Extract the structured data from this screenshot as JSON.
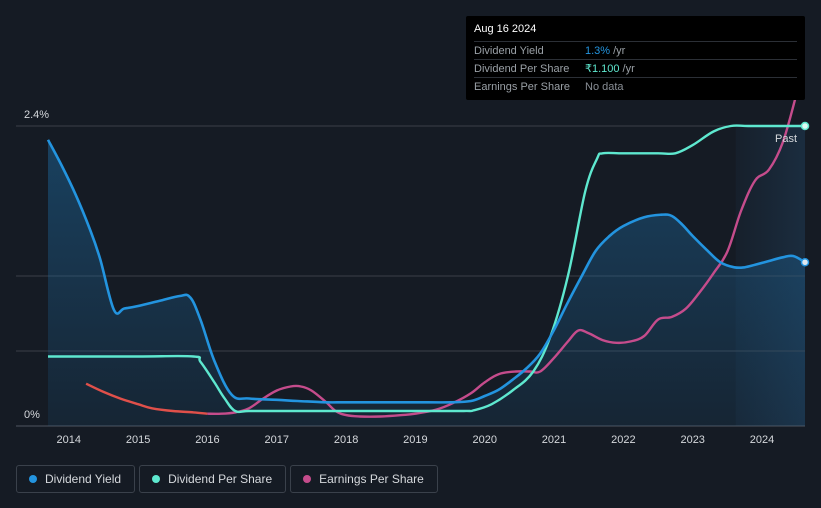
{
  "colors": {
    "background": "#151b24",
    "dividend_yield": "#2394df",
    "dividend_per_share": "#5ee8cf",
    "earnings_per_share": "#c54c8c",
    "eps_early": "#e0504a",
    "grid": "#3a3f47"
  },
  "tooltip": {
    "date": "Aug 16 2024",
    "rows": [
      {
        "label": "Dividend Yield",
        "value": "1.3%",
        "unit": "/yr",
        "color": "#2394df"
      },
      {
        "label": "Dividend Per Share",
        "value": "₹1.100",
        "unit": "/yr",
        "color": "#5ee8cf"
      },
      {
        "label": "Earnings Per Share",
        "value": "No data",
        "unit": "",
        "color": "#8a8f96"
      }
    ]
  },
  "legend": [
    {
      "label": "Dividend Yield",
      "color": "#2394df"
    },
    {
      "label": "Dividend Per Share",
      "color": "#5ee8cf"
    },
    {
      "label": "Earnings Per Share",
      "color": "#c54c8c"
    }
  ],
  "chart_data": {
    "type": "line",
    "y_tick_labels": [
      "2.4%",
      "0%"
    ],
    "ylim": [
      0,
      2.4
    ],
    "xlim": [
      2013.7,
      2024.62
    ],
    "x_tick_labels": [
      "2014",
      "2015",
      "2016",
      "2017",
      "2018",
      "2019",
      "2020",
      "2021",
      "2022",
      "2023",
      "2024"
    ],
    "past_label": "Past",
    "past_region_start": 2023.62,
    "series": [
      {
        "name": "Dividend Yield",
        "unit": "%",
        "area": true,
        "x": [
          2013.7,
          2013.9,
          2014.1,
          2014.3,
          2014.45,
          2014.65,
          2014.8,
          2015.0,
          2015.3,
          2015.6,
          2015.75,
          2015.9,
          2016.1,
          2016.35,
          2016.6,
          2017.0,
          2017.3,
          2017.7,
          2018.0,
          2018.5,
          2019.0,
          2019.5,
          2019.8,
          2020.0,
          2020.2,
          2020.4,
          2020.6,
          2020.8,
          2021.0,
          2021.2,
          2021.4,
          2021.6,
          2021.8,
          2022.0,
          2022.3,
          2022.55,
          2022.7,
          2022.85,
          2023.0,
          2023.2,
          2023.4,
          2023.6,
          2023.75,
          2023.9,
          2024.1,
          2024.3,
          2024.45,
          2024.62
        ],
        "values": [
          2.29,
          2.08,
          1.85,
          1.58,
          1.34,
          0.93,
          0.94,
          0.96,
          1.0,
          1.04,
          1.03,
          0.85,
          0.52,
          0.25,
          0.22,
          0.21,
          0.2,
          0.19,
          0.19,
          0.19,
          0.19,
          0.19,
          0.2,
          0.24,
          0.29,
          0.37,
          0.46,
          0.58,
          0.77,
          0.99,
          1.2,
          1.4,
          1.52,
          1.6,
          1.67,
          1.69,
          1.68,
          1.61,
          1.52,
          1.41,
          1.31,
          1.27,
          1.27,
          1.29,
          1.32,
          1.35,
          1.36,
          1.31
        ]
      },
      {
        "name": "Dividend Per Share",
        "unit": "₹",
        "ymax_value": 1.1,
        "x": [
          2013.7,
          2014.0,
          2015.0,
          2015.8,
          2015.9,
          2016.1,
          2016.25,
          2016.4,
          2016.6,
          2017.0,
          2018.0,
          2019.0,
          2019.7,
          2019.85,
          2020.1,
          2020.4,
          2020.7,
          2020.95,
          2021.2,
          2021.45,
          2021.62,
          2021.7,
          2022.0,
          2022.5,
          2022.75,
          2023.0,
          2023.3,
          2023.55,
          2023.8,
          2024.2,
          2024.62
        ],
        "values": [
          0.255,
          0.255,
          0.255,
          0.255,
          0.235,
          0.16,
          0.1,
          0.055,
          0.055,
          0.055,
          0.055,
          0.055,
          0.055,
          0.058,
          0.08,
          0.13,
          0.2,
          0.33,
          0.55,
          0.86,
          0.98,
          1.0,
          1.0,
          1.0,
          1.0,
          1.03,
          1.08,
          1.1,
          1.1,
          1.1,
          1.1
        ]
      },
      {
        "name": "Earnings Per Share",
        "x": [
          2014.25,
          2014.5,
          2014.75,
          2015.0,
          2015.2,
          2015.5,
          2015.8,
          2016.0,
          2016.2,
          2016.4,
          2016.6,
          2016.8,
          2017.0,
          2017.2,
          2017.35,
          2017.5,
          2017.7,
          2017.85,
          2018.0,
          2018.2,
          2018.5,
          2018.8,
          2019.0,
          2019.3,
          2019.55,
          2019.8,
          2020.0,
          2020.2,
          2020.45,
          2020.65,
          2020.8,
          2021.0,
          2021.2,
          2021.35,
          2021.5,
          2021.7,
          2021.9,
          2022.1,
          2022.3,
          2022.5,
          2022.7,
          2022.9,
          2023.1,
          2023.3,
          2023.5,
          2023.7,
          2023.9,
          2024.1,
          2024.3,
          2024.5
        ],
        "values": [
          0.155,
          0.125,
          0.1,
          0.08,
          0.065,
          0.055,
          0.05,
          0.045,
          0.045,
          0.05,
          0.065,
          0.1,
          0.13,
          0.145,
          0.145,
          0.13,
          0.09,
          0.055,
          0.04,
          0.035,
          0.035,
          0.04,
          0.045,
          0.06,
          0.085,
          0.12,
          0.16,
          0.19,
          0.2,
          0.2,
          0.2,
          0.25,
          0.31,
          0.35,
          0.34,
          0.315,
          0.305,
          0.31,
          0.33,
          0.39,
          0.4,
          0.43,
          0.49,
          0.56,
          0.64,
          0.79,
          0.9,
          0.94,
          1.04,
          1.22
        ]
      }
    ]
  }
}
